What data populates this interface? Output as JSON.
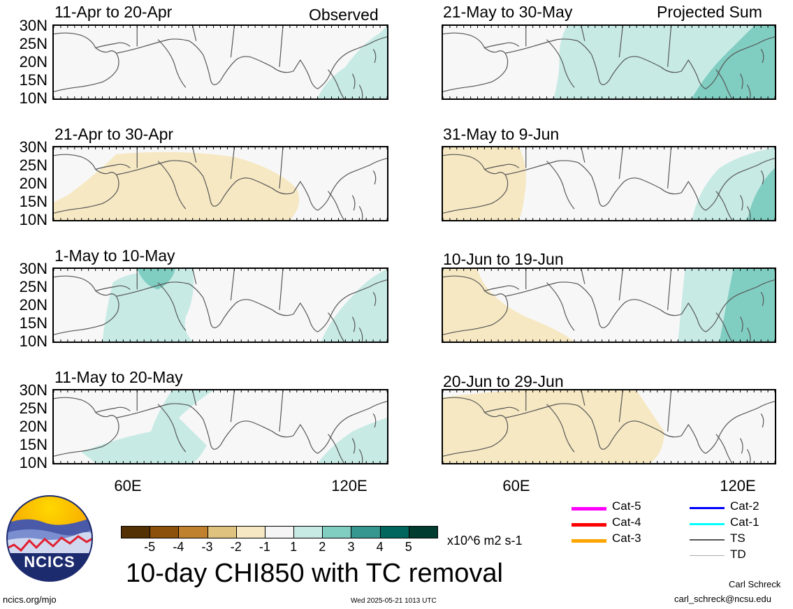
{
  "panels": [
    {
      "id": "p1",
      "title": "11-Apr to 20-Apr",
      "tag": "Observed"
    },
    {
      "id": "p2",
      "title": "21-May to 30-May",
      "tag": "Projected Sum"
    },
    {
      "id": "p3",
      "title": "21-Apr to 30-Apr",
      "tag": ""
    },
    {
      "id": "p4",
      "title": "31-May to 9-Jun",
      "tag": ""
    },
    {
      "id": "p5",
      "title": "1-May to 10-May",
      "tag": ""
    },
    {
      "id": "p6",
      "title": "10-Jun to 19-Jun",
      "tag": ""
    },
    {
      "id": "p7",
      "title": "11-May to 20-May",
      "tag": ""
    },
    {
      "id": "p8",
      "title": "20-Jun to 29-Jun",
      "tag": ""
    }
  ],
  "lat_labels": [
    "30N",
    "25N",
    "20N",
    "15N",
    "10N"
  ],
  "lon_labels": [
    "60E",
    "120E"
  ],
  "colorbar": {
    "colors": [
      "#543005",
      "#8c510a",
      "#bf812d",
      "#dfc27d",
      "#f6e8c3",
      "#f5f5f5",
      "#c7eae5",
      "#80cdc1",
      "#35978f",
      "#01665e",
      "#003c30"
    ],
    "ticks": [
      "-5",
      "-4",
      "-3",
      "-2",
      "-1",
      "1",
      "2",
      "3",
      "4",
      "5"
    ],
    "units": "x10^6 m2 s-1"
  },
  "legend": {
    "items": [
      {
        "label": "Cat-5",
        "color": "#ff00ff",
        "width": 5
      },
      {
        "label": "Cat-4",
        "color": "#ff0000",
        "width": 5
      },
      {
        "label": "Cat-3",
        "color": "#ffa500",
        "width": 5
      },
      {
        "label": "Cat-2",
        "color": "#0000ff",
        "width": 3
      },
      {
        "label": "Cat-1",
        "color": "#00ffff",
        "width": 3
      },
      {
        "label": "TS",
        "color": "#555555",
        "width": 2
      },
      {
        "label": "TD",
        "color": "#aaaaaa",
        "width": 1
      }
    ]
  },
  "main_title": "10-day CHI850 with TC removal",
  "logo_text": "NCICS",
  "footer": {
    "left": "ncics.org/mjo",
    "center": "Wed 2025-05-21 1013 UTC",
    "author": "Carl Schreck",
    "email": "carl_schreck@ncsu.edu"
  },
  "colors": {
    "pos_light": "#c7eae5",
    "pos_mid": "#80cdc1",
    "neg_light": "#f6e8c3",
    "neutral": "#f7f7f7",
    "coast": "#555555"
  }
}
